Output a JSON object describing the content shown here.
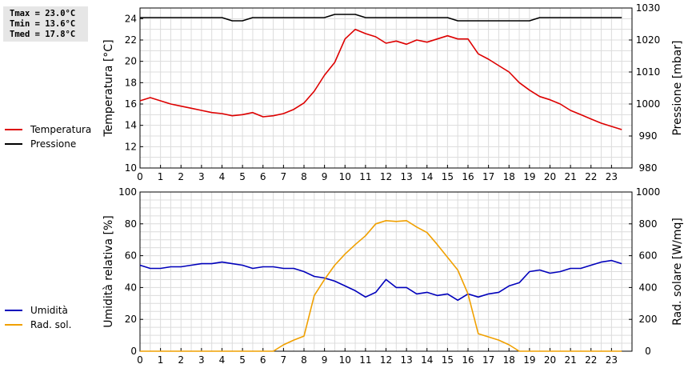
{
  "stats": {
    "tmax": "Tmax = 23.0°C",
    "tmin": "Tmin = 13.6°C",
    "tmed": "Tmed = 17.8°C"
  },
  "chart_data": [
    {
      "type": "line",
      "title": "",
      "xlabel": "",
      "ylabel": "Temperatura [°C]",
      "y2label": "Pressione [mbar]",
      "xlim": [
        0,
        24
      ],
      "ylim": [
        10,
        25
      ],
      "y2lim": [
        980,
        1030
      ],
      "x_ticks": [
        0,
        1,
        2,
        3,
        4,
        5,
        6,
        7,
        8,
        9,
        10,
        11,
        12,
        13,
        14,
        15,
        16,
        17,
        18,
        19,
        20,
        21,
        22,
        23
      ],
      "y_ticks": [
        10,
        12,
        14,
        16,
        18,
        20,
        22,
        24
      ],
      "y2_ticks": [
        980,
        990,
        1000,
        1010,
        1020,
        1030
      ],
      "grid": true,
      "legend_position": "left",
      "series": [
        {
          "name": "Temperatura",
          "color": "#dd0000",
          "axis": "left",
          "x": [
            0,
            0.5,
            1,
            1.5,
            2,
            2.5,
            3,
            3.5,
            4,
            4.5,
            5,
            5.5,
            6,
            6.5,
            7,
            7.5,
            8,
            8.5,
            9,
            9.5,
            10,
            10.5,
            11,
            11.5,
            12,
            12.5,
            13,
            13.5,
            14,
            14.5,
            15,
            15.5,
            16,
            16.5,
            17,
            17.5,
            18,
            18.5,
            19,
            19.5,
            20,
            20.5,
            21,
            21.5,
            22,
            22.5,
            23,
            23.5
          ],
          "values": [
            16.3,
            16.6,
            16.3,
            16.0,
            15.8,
            15.6,
            15.4,
            15.2,
            15.1,
            14.9,
            15.0,
            15.2,
            14.8,
            14.9,
            15.1,
            15.5,
            16.1,
            17.2,
            18.7,
            19.9,
            22.1,
            23.0,
            22.6,
            22.3,
            21.7,
            21.9,
            21.6,
            22.0,
            21.8,
            22.1,
            22.4,
            22.1,
            22.1,
            20.7,
            20.2,
            19.6,
            19.0,
            18.0,
            17.3,
            16.7,
            16.4,
            16.0,
            15.4,
            15.0,
            14.6,
            14.2,
            13.9,
            13.6
          ]
        },
        {
          "name": "Pressione",
          "color": "#000000",
          "axis": "right",
          "x": [
            0,
            1,
            2,
            3,
            4,
            4.5,
            5,
            5.5,
            6,
            7,
            8,
            9,
            9.5,
            10,
            10.5,
            11,
            12,
            13,
            14,
            15,
            15.5,
            16,
            17,
            18,
            19,
            19.5,
            20,
            21,
            22,
            23,
            23.5
          ],
          "values": [
            1027,
            1027,
            1027,
            1027,
            1027,
            1026,
            1026,
            1027,
            1027,
            1027,
            1027,
            1027,
            1028,
            1028,
            1028,
            1027,
            1027,
            1027,
            1027,
            1027,
            1026,
            1026,
            1026,
            1026,
            1026,
            1027,
            1027,
            1027,
            1027,
            1027,
            1027
          ]
        }
      ]
    },
    {
      "type": "line",
      "title": "",
      "xlabel": "",
      "ylabel": "Umidità relativa [%]",
      "y2label": "Rad. solare [W/mq]",
      "xlim": [
        0,
        24
      ],
      "ylim": [
        0,
        100
      ],
      "y2lim": [
        0,
        1000
      ],
      "x_ticks": [
        0,
        1,
        2,
        3,
        4,
        5,
        6,
        7,
        8,
        9,
        10,
        11,
        12,
        13,
        14,
        15,
        16,
        17,
        18,
        19,
        20,
        21,
        22,
        23
      ],
      "y_ticks": [
        0,
        20,
        40,
        60,
        80,
        100
      ],
      "y2_ticks": [
        0,
        200,
        400,
        600,
        800,
        1000
      ],
      "grid": true,
      "legend_position": "left",
      "series": [
        {
          "name": "Umidità",
          "color": "#0000bb",
          "axis": "left",
          "x": [
            0,
            0.5,
            1,
            1.5,
            2,
            2.5,
            3,
            3.5,
            4,
            4.5,
            5,
            5.5,
            6,
            6.5,
            7,
            7.5,
            8,
            8.5,
            9,
            9.5,
            10,
            10.5,
            11,
            11.5,
            12,
            12.5,
            13,
            13.5,
            14,
            14.5,
            15,
            15.5,
            16,
            16.5,
            17,
            17.5,
            18,
            18.5,
            19,
            19.5,
            20,
            20.5,
            21,
            21.5,
            22,
            22.5,
            23,
            23.5
          ],
          "values": [
            54,
            52,
            52,
            53,
            53,
            54,
            55,
            55,
            56,
            55,
            54,
            52,
            53,
            53,
            52,
            52,
            50,
            47,
            46,
            44,
            41,
            38,
            34,
            37,
            45,
            40,
            40,
            36,
            37,
            35,
            36,
            32,
            36,
            34,
            36,
            37,
            41,
            43,
            50,
            51,
            49,
            50,
            52,
            52,
            54,
            56,
            57,
            55
          ]
        },
        {
          "name": "Rad. sol.",
          "color": "#f0a000",
          "axis": "right",
          "x": [
            0,
            1,
            2,
            3,
            4,
            5,
            6,
            6.5,
            7,
            7.5,
            8,
            8.5,
            9,
            9.5,
            10,
            10.5,
            11,
            11.5,
            12,
            12.5,
            13,
            13.5,
            14,
            14.5,
            15,
            15.5,
            16,
            16.5,
            17,
            17.5,
            18,
            18.5,
            19,
            20,
            21,
            22,
            23,
            23.5
          ],
          "values": [
            0,
            0,
            0,
            0,
            0,
            0,
            0,
            0,
            40,
            70,
            95,
            350,
            450,
            540,
            610,
            670,
            725,
            800,
            820,
            815,
            820,
            780,
            745,
            670,
            590,
            510,
            360,
            110,
            90,
            70,
            40,
            0,
            0,
            0,
            0,
            0,
            0,
            0
          ]
        }
      ]
    }
  ]
}
